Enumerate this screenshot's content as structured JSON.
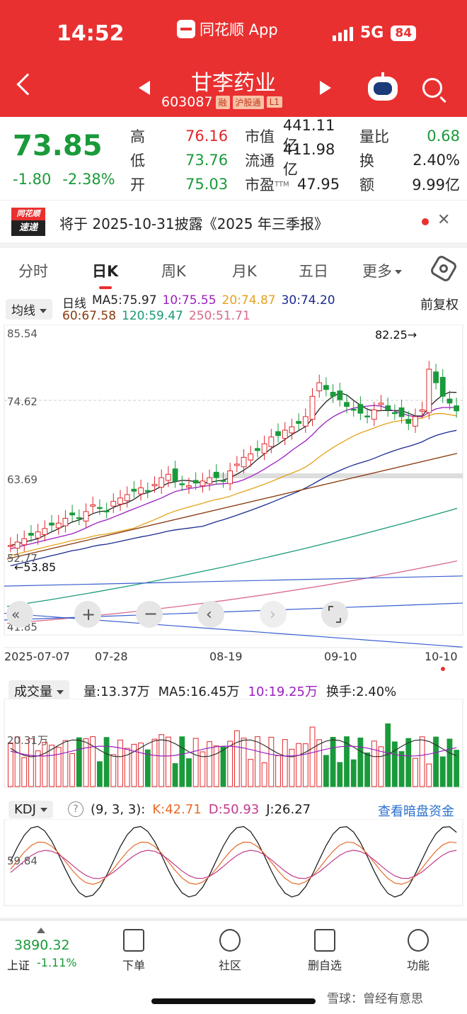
{
  "status_bar": {
    "time": "14:52",
    "app": "同花顺 App",
    "network": "5G",
    "battery": "84"
  },
  "header": {
    "stock_name": "甘李药业",
    "stock_code": "603087",
    "tags": [
      "融",
      "沪股通",
      "L1"
    ]
  },
  "quote": {
    "price": "73.85",
    "change": "-1.80",
    "change_pct": "-2.38%",
    "high_label": "高",
    "high": "76.16",
    "low_label": "低",
    "low": "73.76",
    "open_label": "开",
    "open": "75.03",
    "mktcap_label": "市值",
    "mktcap": "441.11亿",
    "float_label": "流通",
    "float": "411.98亿",
    "pe_label": "市盈",
    "pe_sup": "TTM",
    "pe": "47.95",
    "volratio_label": "量比",
    "volratio": "0.68",
    "turnover_label": "换",
    "turnover": "2.40%",
    "amount_label": "额",
    "amount": "9.99亿"
  },
  "announcement": {
    "badge_top": "同花顺",
    "badge_bottom": "速递",
    "text": "将于 2025-10-31披露《2025 年三季报》"
  },
  "tabs": [
    "分时",
    "日K",
    "周K",
    "月K",
    "五日",
    "更多"
  ],
  "active_tab": "日K",
  "kline": {
    "line_type": "均线",
    "label": "日线",
    "adjust": "前复权",
    "ma": [
      {
        "name": "MA5:75.97",
        "color": "#222222"
      },
      {
        "name": "10:75.55",
        "color": "#9b1fc0"
      },
      {
        "name": "20:74.87",
        "color": "#e5a21a"
      },
      {
        "name": "30:74.20",
        "color": "#1b2a8f"
      },
      {
        "name": "60:67.58",
        "color": "#8a3a10"
      },
      {
        "name": "120:59.47",
        "color": "#1a9a7a"
      },
      {
        "name": "250:51.71",
        "color": "#d86a8a"
      }
    ],
    "y_labels": [
      "85.54",
      "74.62",
      "63.69",
      "52.77",
      "41.85"
    ],
    "x_labels": [
      "2025-07-07",
      "07-28",
      "08-19",
      "09-10",
      "10-10"
    ],
    "max_marker": "82.25→",
    "min_marker": "←53.85"
  },
  "volume": {
    "selector": "成交量",
    "vol": "量:13.37万",
    "ma5": "MA5:16.45万",
    "ma10": "10:19.25万",
    "turnover": "换手:2.40%",
    "y_label": "20.31万"
  },
  "kdj": {
    "selector": "KDJ",
    "help": "?",
    "params": "(9, 3, 3):",
    "k": "K:42.71",
    "d": "D:50.93",
    "j": "J:26.27",
    "link": "查看暗盘资金",
    "y_label": "59.84"
  },
  "bottom_nav": {
    "index_value": "3890.32",
    "index_name": "上证",
    "index_change": "-1.11%",
    "items": [
      "下单",
      "社区",
      "删自选",
      "功能"
    ]
  },
  "watermark": "雪球：曾经有意思"
}
